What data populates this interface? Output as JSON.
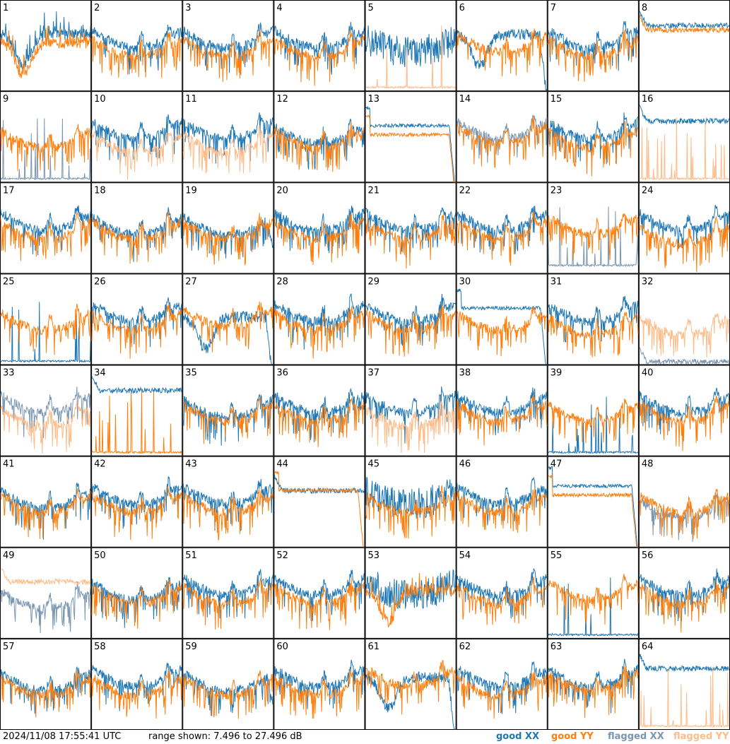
{
  "footer": {
    "timestamp": "2024/11/08 17:55:41 UTC",
    "range_text": "range shown: 7.496 to 27.496 dB"
  },
  "legend": [
    {
      "label": "good XX",
      "color": "#1f77b4"
    },
    {
      "label": "good YY",
      "color": "#ff7f0e"
    },
    {
      "label": "flagged XX",
      "color": "#7a96b0"
    },
    {
      "label": "flagged YY",
      "color": "#ffbb88"
    }
  ],
  "chart_data": {
    "type": "line",
    "panel_grid": {
      "rows": 8,
      "cols": 8
    },
    "ylim": [
      7.496,
      27.496
    ],
    "yunit": "dB",
    "panels": [
      {
        "id": "1",
        "xx": {
          "state": "good",
          "level": 20,
          "shape": "dip"
        },
        "yy": {
          "state": "good",
          "level": 18,
          "shape": "dip"
        }
      },
      {
        "id": "2",
        "xx": {
          "state": "good",
          "level": 21,
          "shape": "bowl"
        },
        "yy": {
          "state": "good",
          "level": 19,
          "shape": "bowl"
        }
      },
      {
        "id": "3",
        "xx": {
          "state": "good",
          "level": 21,
          "shape": "bowl"
        },
        "yy": {
          "state": "good",
          "level": 19,
          "shape": "bowl"
        }
      },
      {
        "id": "4",
        "xx": {
          "state": "good",
          "level": 21,
          "shape": "bowl"
        },
        "yy": {
          "state": "good",
          "level": 19,
          "shape": "bowl"
        }
      },
      {
        "id": "5",
        "xx": {
          "state": "good",
          "level": 19,
          "shape": "noisy"
        },
        "yy": {
          "state": "flagged",
          "level": 8,
          "shape": "spikes"
        }
      },
      {
        "id": "6",
        "xx": {
          "state": "good",
          "level": 20,
          "shape": "dip-drop"
        },
        "yy": {
          "state": "good",
          "level": 20,
          "shape": "bowl"
        }
      },
      {
        "id": "7",
        "xx": {
          "state": "good",
          "level": 21,
          "shape": "bowl"
        },
        "yy": {
          "state": "good",
          "level": 19,
          "shape": "bowl"
        }
      },
      {
        "id": "8",
        "xx": {
          "state": "good",
          "level": 22,
          "shape": "flat"
        },
        "yy": {
          "state": "good",
          "level": 21,
          "shape": "flat"
        }
      },
      {
        "id": "9",
        "xx": {
          "state": "flagged",
          "level": 8,
          "shape": "spikes"
        },
        "yy": {
          "state": "good",
          "level": 19,
          "shape": "bowl"
        }
      },
      {
        "id": "10",
        "xx": {
          "state": "good",
          "level": 21,
          "shape": "bowl"
        },
        "yy": {
          "state": "flagged",
          "level": 18,
          "shape": "bowl"
        }
      },
      {
        "id": "11",
        "xx": {
          "state": "good",
          "level": 21,
          "shape": "bowl"
        },
        "yy": {
          "state": "flagged",
          "level": 18,
          "shape": "bowl"
        }
      },
      {
        "id": "12",
        "xx": {
          "state": "good",
          "level": 20,
          "shape": "bowl"
        },
        "yy": {
          "state": "good",
          "level": 19,
          "shape": "bowl"
        }
      },
      {
        "id": "13",
        "xx": {
          "state": "good",
          "level": 20,
          "shape": "flat-drop"
        },
        "yy": {
          "state": "good",
          "level": 18,
          "shape": "flat-drop"
        }
      },
      {
        "id": "14",
        "xx": {
          "state": "flagged",
          "level": 21,
          "shape": "bowl"
        },
        "yy": {
          "state": "good",
          "level": 20,
          "shape": "bowl"
        }
      },
      {
        "id": "15",
        "xx": {
          "state": "good",
          "level": 21,
          "shape": "bowl"
        },
        "yy": {
          "state": "good",
          "level": 19,
          "shape": "bowl"
        }
      },
      {
        "id": "16",
        "xx": {
          "state": "good",
          "level": 21,
          "shape": "flat"
        },
        "yy": {
          "state": "flagged",
          "level": 8,
          "shape": "spikes"
        }
      },
      {
        "id": "17",
        "xx": {
          "state": "good",
          "level": 21,
          "shape": "bowl"
        },
        "yy": {
          "state": "good",
          "level": 19,
          "shape": "bowl"
        }
      },
      {
        "id": "18",
        "xx": {
          "state": "good",
          "level": 20,
          "shape": "bowl"
        },
        "yy": {
          "state": "good",
          "level": 19,
          "shape": "bowl"
        }
      },
      {
        "id": "19",
        "xx": {
          "state": "good",
          "level": 20,
          "shape": "bowl-drop"
        },
        "yy": {
          "state": "good",
          "level": 19,
          "shape": "bowl"
        }
      },
      {
        "id": "20",
        "xx": {
          "state": "good",
          "level": 21,
          "shape": "bowl"
        },
        "yy": {
          "state": "good",
          "level": 19,
          "shape": "bowl"
        }
      },
      {
        "id": "21",
        "xx": {
          "state": "good",
          "level": 21,
          "shape": "bowl"
        },
        "yy": {
          "state": "good",
          "level": 19,
          "shape": "bowl"
        }
      },
      {
        "id": "22",
        "xx": {
          "state": "good",
          "level": 21,
          "shape": "bowl"
        },
        "yy": {
          "state": "good",
          "level": 19,
          "shape": "bowl"
        }
      },
      {
        "id": "23",
        "xx": {
          "state": "flagged",
          "level": 9,
          "shape": "spikes"
        },
        "yy": {
          "state": "good",
          "level": 20,
          "shape": "bowl"
        }
      },
      {
        "id": "24",
        "xx": {
          "state": "good",
          "level": 21,
          "shape": "bowl"
        },
        "yy": {
          "state": "good",
          "level": 18,
          "shape": "bowl"
        }
      },
      {
        "id": "25",
        "xx": {
          "state": "good",
          "level": 8,
          "shape": "spikes"
        },
        "yy": {
          "state": "good",
          "level": 19,
          "shape": "bowl"
        }
      },
      {
        "id": "26",
        "xx": {
          "state": "good",
          "level": 21,
          "shape": "bowl"
        },
        "yy": {
          "state": "good",
          "level": 19,
          "shape": "bowl"
        }
      },
      {
        "id": "27",
        "xx": {
          "state": "good",
          "level": 18,
          "shape": "dip-drop"
        },
        "yy": {
          "state": "good",
          "level": 20,
          "shape": "bowl"
        }
      },
      {
        "id": "28",
        "xx": {
          "state": "good",
          "level": 21,
          "shape": "bowl"
        },
        "yy": {
          "state": "good",
          "level": 19,
          "shape": "bowl"
        }
      },
      {
        "id": "29",
        "xx": {
          "state": "good",
          "level": 21,
          "shape": "bowl"
        },
        "yy": {
          "state": "good",
          "level": 19,
          "shape": "bowl"
        }
      },
      {
        "id": "30",
        "xx": {
          "state": "good",
          "level": 20,
          "shape": "flat-drop"
        },
        "yy": {
          "state": "good",
          "level": 19,
          "shape": "bowl"
        }
      },
      {
        "id": "31",
        "xx": {
          "state": "good",
          "level": 21,
          "shape": "bowl"
        },
        "yy": {
          "state": "good",
          "level": 18,
          "shape": "bowl"
        }
      },
      {
        "id": "32",
        "xx": {
          "state": "flagged",
          "level": 8,
          "shape": "flat"
        },
        "yy": {
          "state": "flagged",
          "level": 18,
          "shape": "bowl"
        }
      },
      {
        "id": "33",
        "xx": {
          "state": "flagged",
          "level": 21,
          "shape": "bowl"
        },
        "yy": {
          "state": "flagged",
          "level": 18,
          "shape": "bowl"
        }
      },
      {
        "id": "34",
        "xx": {
          "state": "good",
          "level": 22,
          "shape": "flat"
        },
        "yy": {
          "state": "good",
          "level": 8,
          "shape": "spikes"
        }
      },
      {
        "id": "35",
        "xx": {
          "state": "good",
          "level": 20,
          "shape": "bowl"
        },
        "yy": {
          "state": "good",
          "level": 19,
          "shape": "bowl"
        }
      },
      {
        "id": "36",
        "xx": {
          "state": "good",
          "level": 21,
          "shape": "bowl"
        },
        "yy": {
          "state": "good",
          "level": 19,
          "shape": "bowl"
        }
      },
      {
        "id": "37",
        "xx": {
          "state": "good",
          "level": 21,
          "shape": "bowl"
        },
        "yy": {
          "state": "flagged",
          "level": 18,
          "shape": "bowl"
        }
      },
      {
        "id": "38",
        "xx": {
          "state": "good",
          "level": 21,
          "shape": "bowl"
        },
        "yy": {
          "state": "good",
          "level": 19,
          "shape": "bowl"
        }
      },
      {
        "id": "39",
        "xx": {
          "state": "good",
          "level": 8,
          "shape": "spikes"
        },
        "yy": {
          "state": "good",
          "level": 19,
          "shape": "bowl"
        }
      },
      {
        "id": "40",
        "xx": {
          "state": "good",
          "level": 21,
          "shape": "bowl"
        },
        "yy": {
          "state": "good",
          "level": 19,
          "shape": "bowl"
        }
      },
      {
        "id": "41",
        "xx": {
          "state": "good",
          "level": 20,
          "shape": "bowl"
        },
        "yy": {
          "state": "good",
          "level": 19,
          "shape": "bowl"
        }
      },
      {
        "id": "42",
        "xx": {
          "state": "good",
          "level": 21,
          "shape": "bowl"
        },
        "yy": {
          "state": "good",
          "level": 19,
          "shape": "bowl"
        }
      },
      {
        "id": "43",
        "xx": {
          "state": "good",
          "level": 21,
          "shape": "bowl"
        },
        "yy": {
          "state": "good",
          "level": 19,
          "shape": "bowl"
        }
      },
      {
        "id": "44",
        "xx": {
          "state": "good",
          "level": 20,
          "shape": "flat"
        },
        "yy": {
          "state": "good",
          "level": 20,
          "shape": "flat-drop"
        }
      },
      {
        "id": "45",
        "xx": {
          "state": "good",
          "level": 20,
          "shape": "noisy"
        },
        "yy": {
          "state": "good",
          "level": 19,
          "shape": "bowl"
        }
      },
      {
        "id": "46",
        "xx": {
          "state": "good",
          "level": 21,
          "shape": "bowl"
        },
        "yy": {
          "state": "good",
          "level": 19,
          "shape": "bowl"
        }
      },
      {
        "id": "47",
        "xx": {
          "state": "good",
          "level": 21,
          "shape": "flat-drop"
        },
        "yy": {
          "state": "good",
          "level": 19,
          "shape": "flat-drop"
        }
      },
      {
        "id": "48",
        "xx": {
          "state": "flagged",
          "level": 18,
          "shape": "bowl"
        },
        "yy": {
          "state": "good",
          "level": 19,
          "shape": "bowl"
        }
      },
      {
        "id": "49",
        "xx": {
          "state": "flagged",
          "level": 18,
          "shape": "bowl"
        },
        "yy": {
          "state": "flagged",
          "level": 20,
          "shape": "flat"
        }
      },
      {
        "id": "50",
        "xx": {
          "state": "good",
          "level": 20,
          "shape": "bowl"
        },
        "yy": {
          "state": "good",
          "level": 19,
          "shape": "bowl"
        }
      },
      {
        "id": "51",
        "xx": {
          "state": "good",
          "level": 21,
          "shape": "bowl"
        },
        "yy": {
          "state": "good",
          "level": 19,
          "shape": "bowl"
        }
      },
      {
        "id": "52",
        "xx": {
          "state": "good",
          "level": 21,
          "shape": "bowl"
        },
        "yy": {
          "state": "good",
          "level": 19,
          "shape": "bowl"
        }
      },
      {
        "id": "53",
        "xx": {
          "state": "good",
          "level": 20,
          "shape": "noisy"
        },
        "yy": {
          "state": "good",
          "level": 18,
          "shape": "dip"
        }
      },
      {
        "id": "54",
        "xx": {
          "state": "good",
          "level": 21,
          "shape": "bowl"
        },
        "yy": {
          "state": "good",
          "level": 19,
          "shape": "bowl"
        }
      },
      {
        "id": "55",
        "xx": {
          "state": "good",
          "level": 8,
          "shape": "spikes"
        },
        "yy": {
          "state": "good",
          "level": 20,
          "shape": "bowl"
        }
      },
      {
        "id": "56",
        "xx": {
          "state": "good",
          "level": 21,
          "shape": "bowl"
        },
        "yy": {
          "state": "good",
          "level": 19,
          "shape": "bowl"
        }
      },
      {
        "id": "57",
        "xx": {
          "state": "good",
          "level": 20,
          "shape": "bowl"
        },
        "yy": {
          "state": "good",
          "level": 19,
          "shape": "bowl"
        }
      },
      {
        "id": "58",
        "xx": {
          "state": "good",
          "level": 21,
          "shape": "bowl"
        },
        "yy": {
          "state": "good",
          "level": 19,
          "shape": "bowl"
        }
      },
      {
        "id": "59",
        "xx": {
          "state": "good",
          "level": 20,
          "shape": "bowl-drop"
        },
        "yy": {
          "state": "good",
          "level": 19,
          "shape": "bowl"
        }
      },
      {
        "id": "60",
        "xx": {
          "state": "good",
          "level": 21,
          "shape": "bowl"
        },
        "yy": {
          "state": "good",
          "level": 19,
          "shape": "bowl"
        }
      },
      {
        "id": "61",
        "xx": {
          "state": "good",
          "level": 19,
          "shape": "dip-drop"
        },
        "yy": {
          "state": "good",
          "level": 21,
          "shape": "bowl"
        }
      },
      {
        "id": "62",
        "xx": {
          "state": "good",
          "level": 21,
          "shape": "bowl"
        },
        "yy": {
          "state": "good",
          "level": 19,
          "shape": "bowl"
        }
      },
      {
        "id": "63",
        "xx": {
          "state": "good",
          "level": 21,
          "shape": "bowl"
        },
        "yy": {
          "state": "good",
          "level": 20,
          "shape": "bowl"
        }
      },
      {
        "id": "64",
        "xx": {
          "state": "good",
          "level": 21,
          "shape": "flat"
        },
        "yy": {
          "state": "flagged",
          "level": 8,
          "shape": "spikes"
        }
      }
    ]
  }
}
